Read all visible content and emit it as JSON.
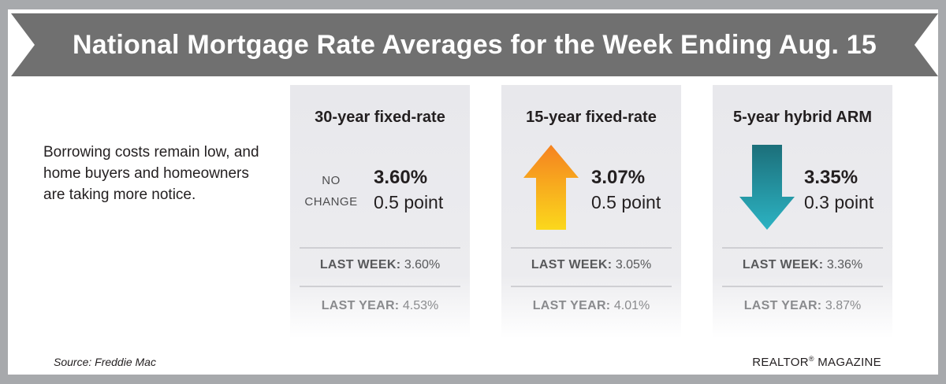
{
  "title": "National Mortgage Rate Averages for the Week Ending Aug. 15",
  "intro": "Borrowing costs remain low, and home buyers and homeowners are taking more notice.",
  "cards": [
    {
      "title": "30-year fixed-rate",
      "trend": "no-change",
      "trend_label_line1": "NO",
      "trend_label_line2": "CHANGE",
      "rate": "3.60%",
      "points": "0.5 point",
      "last_week_label": "LAST WEEK:",
      "last_week_value": "3.60%",
      "last_year_label": "LAST YEAR:",
      "last_year_value": "4.53%"
    },
    {
      "title": "15-year fixed-rate",
      "trend": "up-arrow",
      "rate": "3.07%",
      "points": "0.5 point",
      "last_week_label": "LAST WEEK:",
      "last_week_value": "3.05%",
      "last_year_label": "LAST YEAR:",
      "last_year_value": "4.01%"
    },
    {
      "title": "5-year hybrid ARM",
      "trend": "down-arrow",
      "rate": "3.35%",
      "points": "0.3 point",
      "last_week_label": "LAST WEEK:",
      "last_week_value": "3.36%",
      "last_year_label": "LAST YEAR:",
      "last_year_value": "3.87%"
    }
  ],
  "source": "Source: Freddie Mac",
  "brand": "REALTOR",
  "brand_mark": "®",
  "brand_suffix": " MAGAZINE",
  "colors": {
    "banner": "#707070",
    "up_arrow_top": "#f58220",
    "up_arrow_bottom": "#fbd81c",
    "down_arrow_top": "#1c6f7a",
    "down_arrow_bottom": "#2cb3c3"
  }
}
